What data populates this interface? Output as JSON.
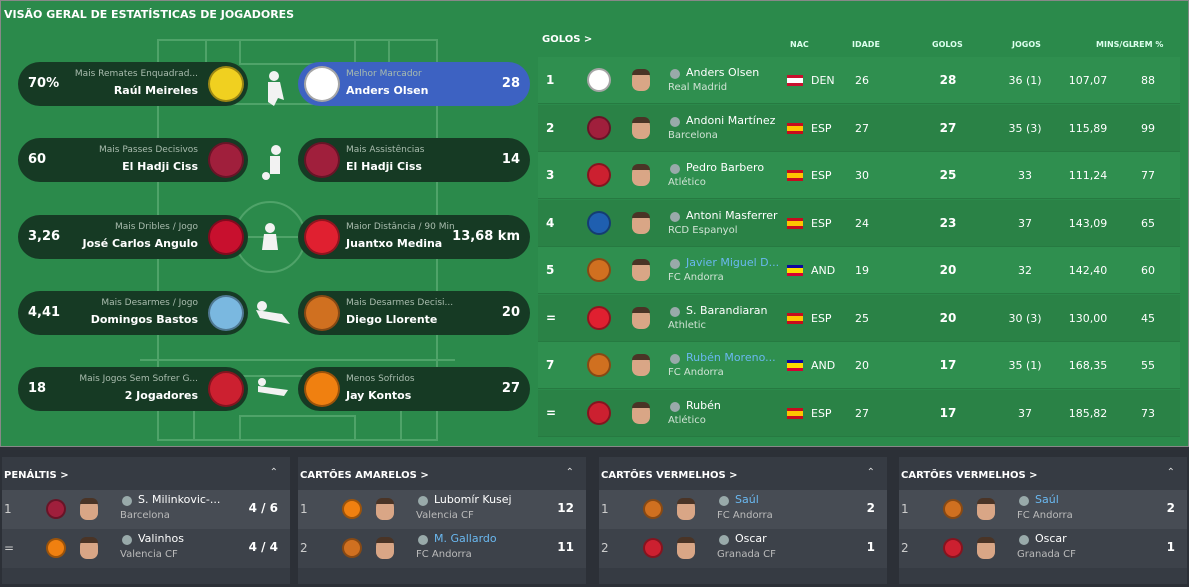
{
  "title": "VISÃO GERAL DE ESTATÍSTICAS DE JOGADORES",
  "leaders": [
    {
      "left": {
        "label": "Mais Remates Enquadrad...",
        "player": "Raúl Meireles",
        "value": "70%",
        "crest_color": "#f0d020"
      },
      "right": {
        "label": "Melhor Marcador",
        "player": "Anders Olsen",
        "value": "28",
        "crest_color": "#ffffff",
        "color": "#3d62c2"
      }
    },
    {
      "left": {
        "label": "Mais Passes Decisivos",
        "player": "El Hadji Ciss",
        "value": "60",
        "crest_color": "#a01f3c"
      },
      "right": {
        "label": "Mais Assistências",
        "player": "El Hadji Ciss",
        "value": "14",
        "crest_color": "#a01f3c"
      }
    },
    {
      "left": {
        "label": "Mais Dribles / Jogo",
        "player": "José Carlos Angulo",
        "value": "3,26",
        "crest_color": "#c8102e"
      },
      "right": {
        "label": "Maior Distância / 90 Min",
        "player": "Juantxo Medina",
        "value": "13,68 km",
        "crest_color": "#e02030"
      }
    },
    {
      "left": {
        "label": "Mais Desarmes / Jogo",
        "player": "Domingos Bastos",
        "value": "4,41",
        "crest_color": "#7ab8e0"
      },
      "right": {
        "label": "Mais Desarmes Decisi...",
        "player": "Diego Llorente",
        "value": "20",
        "crest_color": "#d07020"
      }
    },
    {
      "left": {
        "label": "Mais Jogos Sem Sofrer G...",
        "player": "2 Jogadores",
        "value": "18",
        "crest_color": "#cc2030"
      },
      "right": {
        "label": "Menos Sofridos",
        "player": "Jay Kontos",
        "value": "27",
        "crest_color": "#f08010"
      }
    }
  ],
  "goals": {
    "title": "GOLOS >",
    "headers": [
      "NAC",
      "IDADE",
      "GOLOS",
      "JOGOS",
      "MINS/GL",
      "REM %"
    ],
    "rows": [
      {
        "pos": "1",
        "name": "Anders Olsen",
        "club": "Real Madrid",
        "nat": "DEN",
        "age": 26,
        "goals": 28,
        "games": "36 (1)",
        "mins": "107,07",
        "rem": 88,
        "crest_color": "#ffffff",
        "flag": [
          "#c8102e",
          "#ffffff",
          "#c8102e"
        ]
      },
      {
        "pos": "2",
        "name": "Andoni Martínez",
        "club": "Barcelona",
        "nat": "ESP",
        "age": 27,
        "goals": 27,
        "games": "35 (3)",
        "mins": "115,89",
        "rem": 99,
        "crest_color": "#a01f3c",
        "flag": [
          "#c60b1e",
          "#ffc400",
          "#c60b1e"
        ]
      },
      {
        "pos": "3",
        "name": "Pedro Barbero",
        "club": "Atlético",
        "nat": "ESP",
        "age": 30,
        "goals": 25,
        "games": "33",
        "mins": "111,24",
        "rem": 77,
        "crest_color": "#cc2030",
        "flag": [
          "#c60b1e",
          "#ffc400",
          "#c60b1e"
        ]
      },
      {
        "pos": "4",
        "name": "Antoni Masferrer",
        "club": "RCD Espanyol",
        "nat": "ESP",
        "age": 24,
        "goals": 23,
        "games": "37",
        "mins": "143,09",
        "rem": 65,
        "crest_color": "#1f5fb0",
        "flag": [
          "#c60b1e",
          "#ffc400",
          "#c60b1e"
        ]
      },
      {
        "pos": "5",
        "name": "Javier Miguel D...",
        "club": "FC Andorra",
        "nat": "AND",
        "age": 19,
        "goals": 20,
        "games": "32",
        "mins": "142,40",
        "rem": 60,
        "crest_color": "#d07020",
        "flag": [
          "#10069f",
          "#fedd00",
          "#d50032"
        ],
        "name_color": "#6ab8f0"
      },
      {
        "pos": "=",
        "name": "S. Barandiaran",
        "club": "Athletic",
        "nat": "ESP",
        "age": 25,
        "goals": 20,
        "games": "30 (3)",
        "mins": "130,00",
        "rem": 45,
        "crest_color": "#e02030",
        "flag": [
          "#c60b1e",
          "#ffc400",
          "#c60b1e"
        ]
      },
      {
        "pos": "7",
        "name": "Rubén Moreno...",
        "club": "FC Andorra",
        "nat": "AND",
        "age": 20,
        "goals": 17,
        "games": "35 (1)",
        "mins": "168,35",
        "rem": 55,
        "crest_color": "#d07020",
        "flag": [
          "#10069f",
          "#fedd00",
          "#d50032"
        ],
        "name_color": "#6ab8f0"
      },
      {
        "pos": "=",
        "name": "Rubén",
        "club": "Atlético",
        "nat": "ESP",
        "age": 27,
        "goals": 17,
        "games": "37",
        "mins": "185,82",
        "rem": 73,
        "crest_color": "#cc2030",
        "flag": [
          "#c60b1e",
          "#ffc400",
          "#c60b1e"
        ]
      }
    ]
  },
  "panels": [
    {
      "title": "PENÁLTIS >",
      "rows": [
        {
          "pos": "1",
          "name": "S. Milinkovic-...",
          "club": "Barcelona",
          "value": "4 / 6",
          "crest_color": "#a01f3c"
        },
        {
          "pos": "=",
          "name": "Valinhos",
          "club": "Valencia CF",
          "value": "4 / 4",
          "crest_color": "#f08010"
        }
      ]
    },
    {
      "title": "CARTÕES AMARELOS >",
      "rows": [
        {
          "pos": "1",
          "name": "Lubomír Kusej",
          "club": "Valencia CF",
          "value": "12",
          "crest_color": "#f08010"
        },
        {
          "pos": "2",
          "name": "M. Gallardo",
          "club": "FC Andorra",
          "value": "11",
          "crest_color": "#d07020",
          "name_color": "#6ab8f0"
        }
      ]
    },
    {
      "title": "CARTÕES VERMELHOS >",
      "rows": [
        {
          "pos": "1",
          "name": "Saúl",
          "club": "FC Andorra",
          "value": "2",
          "crest_color": "#d07020",
          "name_color": "#6ab8f0"
        },
        {
          "pos": "2",
          "name": "Oscar",
          "club": "Granada CF",
          "value": "1",
          "crest_color": "#cc2030"
        }
      ]
    },
    {
      "title": "CARTÕES VERMELHOS >",
      "rows": [
        {
          "pos": "1",
          "name": "Saúl",
          "club": "FC Andorra",
          "value": "2",
          "crest_color": "#d07020",
          "name_color": "#6ab8f0"
        },
        {
          "pos": "2",
          "name": "Oscar",
          "club": "Granada CF",
          "value": "1",
          "crest_color": "#cc2030"
        }
      ]
    }
  ]
}
